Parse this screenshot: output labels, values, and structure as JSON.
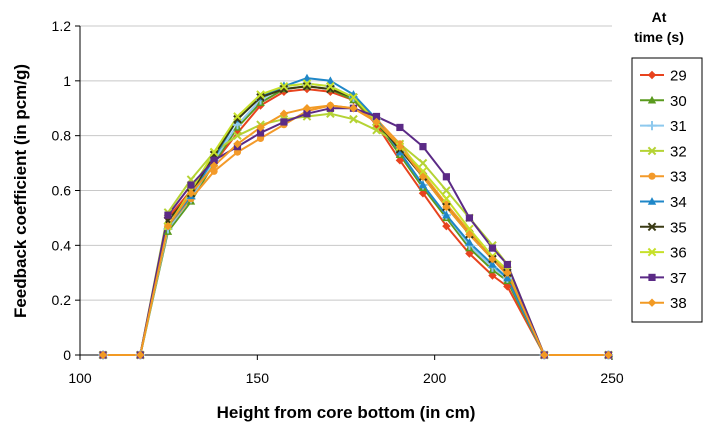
{
  "chart_data": {
    "type": "line",
    "xlabel": "Height from core bottom (in cm)",
    "ylabel": "Feedback coefficient (in pcm/g)",
    "xlim": [
      100,
      250
    ],
    "ylim": [
      0,
      1.2
    ],
    "xticks": [
      100,
      150,
      200,
      250
    ],
    "yticks": [
      0,
      0.2,
      0.4,
      0.6,
      0.8,
      1,
      1.2
    ],
    "ytick_labels": [
      "0",
      "0.2",
      "0.4",
      "0.6",
      "0.8",
      "1",
      "1.2"
    ],
    "grid": "horizontal",
    "legend": {
      "title_line1": "At",
      "title_line2": "time (s)",
      "placement": "right"
    },
    "x": [
      106.5,
      117,
      124.8,
      131.3,
      137.8,
      144.4,
      150.9,
      157.5,
      164,
      170.6,
      177.1,
      183.6,
      190.2,
      196.7,
      203.3,
      209.8,
      216.3,
      220.5,
      230.9,
      249
    ],
    "series": [
      {
        "name": "29",
        "color": "#e8431e",
        "marker": "diamond",
        "values": [
          0,
          0,
          0.5,
          0.6,
          0.7,
          0.81,
          0.91,
          0.96,
          0.97,
          0.96,
          0.93,
          0.84,
          0.71,
          0.59,
          0.47,
          0.37,
          0.29,
          0.25,
          0,
          0
        ]
      },
      {
        "name": "30",
        "color": "#5a9a1e",
        "marker": "triangle",
        "values": [
          0,
          0,
          0.45,
          0.56,
          0.7,
          0.83,
          0.92,
          0.97,
          0.98,
          0.97,
          0.93,
          0.85,
          0.73,
          0.61,
          0.5,
          0.39,
          0.31,
          0.27,
          0,
          0
        ]
      },
      {
        "name": "31",
        "color": "#8ec9ee",
        "marker": "plus",
        "values": [
          0,
          0,
          0.46,
          0.57,
          0.71,
          0.84,
          0.93,
          0.98,
          0.99,
          0.98,
          0.94,
          0.86,
          0.74,
          0.62,
          0.51,
          0.4,
          0.32,
          0.28,
          0,
          0
        ]
      },
      {
        "name": "32",
        "color": "#b5d334",
        "marker": "x",
        "values": [
          0,
          0,
          0.52,
          0.64,
          0.74,
          0.8,
          0.84,
          0.86,
          0.87,
          0.88,
          0.86,
          0.82,
          0.77,
          0.7,
          0.6,
          0.5,
          0.4,
          0.33,
          0,
          0
        ]
      },
      {
        "name": "33",
        "color": "#f39a2a",
        "marker": "circle",
        "values": [
          0,
          0,
          0.47,
          0.57,
          0.67,
          0.74,
          0.79,
          0.84,
          0.89,
          0.91,
          0.9,
          0.86,
          0.77,
          0.66,
          0.55,
          0.45,
          0.35,
          0.29,
          0,
          0
        ]
      },
      {
        "name": "34",
        "color": "#1f87c8",
        "marker": "triangle",
        "values": [
          0,
          0,
          0.47,
          0.58,
          0.72,
          0.86,
          0.94,
          0.98,
          1.01,
          1.0,
          0.95,
          0.86,
          0.74,
          0.62,
          0.51,
          0.41,
          0.33,
          0.28,
          0,
          0
        ]
      },
      {
        "name": "35",
        "color": "#3a3a14",
        "marker": "x",
        "values": [
          0,
          0,
          0.49,
          0.59,
          0.73,
          0.86,
          0.94,
          0.97,
          0.98,
          0.97,
          0.94,
          0.85,
          0.75,
          0.65,
          0.54,
          0.44,
          0.35,
          0.3,
          0,
          0
        ]
      },
      {
        "name": "36",
        "color": "#c6e02a",
        "marker": "x",
        "values": [
          0,
          0,
          0.47,
          0.6,
          0.74,
          0.87,
          0.95,
          0.98,
          0.99,
          0.98,
          0.94,
          0.85,
          0.76,
          0.67,
          0.57,
          0.46,
          0.36,
          0.31,
          0,
          0
        ]
      },
      {
        "name": "37",
        "color": "#5b2a86",
        "marker": "square",
        "values": [
          0,
          0,
          0.51,
          0.62,
          0.71,
          0.76,
          0.81,
          0.85,
          0.88,
          0.9,
          0.9,
          0.87,
          0.83,
          0.76,
          0.65,
          0.5,
          0.39,
          0.33,
          0,
          0
        ]
      },
      {
        "name": "38",
        "color": "#f29a24",
        "marker": "diamond",
        "values": [
          0,
          0,
          0.47,
          0.59,
          0.69,
          0.77,
          0.83,
          0.88,
          0.9,
          0.91,
          0.9,
          0.85,
          0.76,
          0.65,
          0.54,
          0.44,
          0.35,
          0.3,
          0,
          0
        ]
      }
    ]
  }
}
